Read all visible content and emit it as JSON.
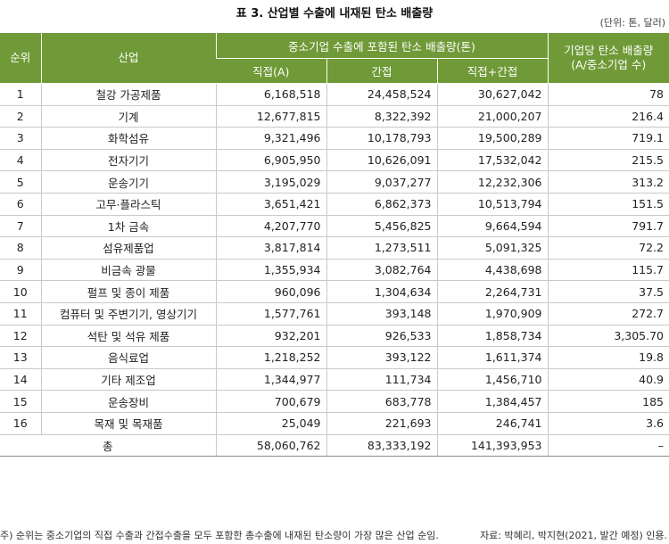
{
  "title": "표 3. 산업별 수출에 내재된 탄소 배출량",
  "unit": "(단위: 톤, 달러)",
  "headers": {
    "rank": "순위",
    "industry": "산업",
    "emission_group": "중소기업 수출에 포함된 탄소 배출량(톤)",
    "direct": "직접(A)",
    "indirect": "간접",
    "total": "직접+간접",
    "per_firm_line1": "기업당 탄소 배출량",
    "per_firm_line2": "(A/중소기업 수)"
  },
  "rows": [
    {
      "rank": "1",
      "industry": "철강 가공제품",
      "direct": "6,168,518",
      "indirect": "24,458,524",
      "total": "30,627,042",
      "per_firm": "78"
    },
    {
      "rank": "2",
      "industry": "기계",
      "direct": "12,677,815",
      "indirect": "8,322,392",
      "total": "21,000,207",
      "per_firm": "216.4"
    },
    {
      "rank": "3",
      "industry": "화학섬유",
      "direct": "9,321,496",
      "indirect": "10,178,793",
      "total": "19,500,289",
      "per_firm": "719.1"
    },
    {
      "rank": "4",
      "industry": "전자기기",
      "direct": "6,905,950",
      "indirect": "10,626,091",
      "total": "17,532,042",
      "per_firm": "215.5"
    },
    {
      "rank": "5",
      "industry": "운송기기",
      "direct": "3,195,029",
      "indirect": "9,037,277",
      "total": "12,232,306",
      "per_firm": "313.2"
    },
    {
      "rank": "6",
      "industry": "고무·플라스틱",
      "direct": "3,651,421",
      "indirect": "6,862,373",
      "total": "10,513,794",
      "per_firm": "151.5"
    },
    {
      "rank": "7",
      "industry": "1차 금속",
      "direct": "4,207,770",
      "indirect": "5,456,825",
      "total": "9,664,594",
      "per_firm": "791.7"
    },
    {
      "rank": "8",
      "industry": "섬유제품업",
      "direct": "3,817,814",
      "indirect": "1,273,511",
      "total": "5,091,325",
      "per_firm": "72.2"
    },
    {
      "rank": "9",
      "industry": "비금속 광물",
      "direct": "1,355,934",
      "indirect": "3,082,764",
      "total": "4,438,698",
      "per_firm": "115.7"
    },
    {
      "rank": "10",
      "industry": "펄프 및 종이 제품",
      "direct": "960,096",
      "indirect": "1,304,634",
      "total": "2,264,731",
      "per_firm": "37.5"
    },
    {
      "rank": "11",
      "industry": "컴퓨터 및 주변기기, 영상기기",
      "direct": "1,577,761",
      "indirect": "393,148",
      "total": "1,970,909",
      "per_firm": "272.7"
    },
    {
      "rank": "12",
      "industry": "석탄 및 석유 제품",
      "direct": "932,201",
      "indirect": "926,533",
      "total": "1,858,734",
      "per_firm": "3,305.70"
    },
    {
      "rank": "13",
      "industry": "음식료업",
      "direct": "1,218,252",
      "indirect": "393,122",
      "total": "1,611,374",
      "per_firm": "19.8"
    },
    {
      "rank": "14",
      "industry": "기타 제조업",
      "direct": "1,344,977",
      "indirect": "111,734",
      "total": "1,456,710",
      "per_firm": "40.9"
    },
    {
      "rank": "15",
      "industry": "운송장비",
      "direct": "700,679",
      "indirect": "683,778",
      "total": "1,384,457",
      "per_firm": "185"
    },
    {
      "rank": "16",
      "industry": "목재 및 목재품",
      "direct": "25,049",
      "indirect": "221,693",
      "total": "246,741",
      "per_firm": "3.6"
    }
  ],
  "total_row": {
    "label": "총",
    "direct": "58,060,762",
    "indirect": "83,333,192",
    "total": "141,393,953",
    "per_firm": "–"
  },
  "footnote": "주) 순위는 중소기업의 직접 수출과 간접수출을 모두 포함한 총수출에 내재된 탄소량이 가장 많은 산업 순임.",
  "source": "자료: 박혜리, 박지현(2021, 발간 예정) 인용."
}
